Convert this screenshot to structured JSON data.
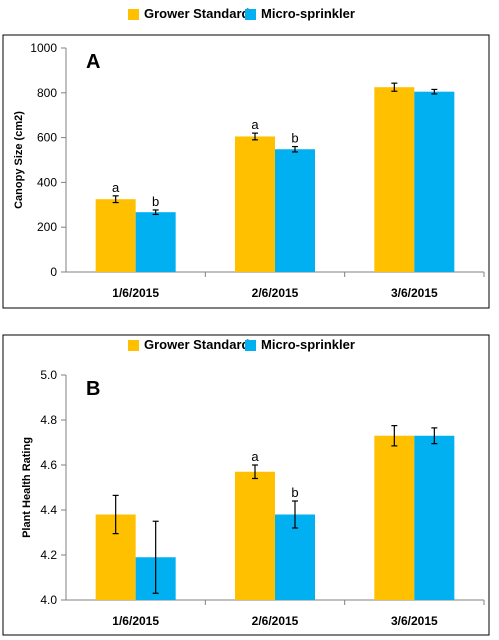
{
  "colors": {
    "grower": "#FFC000",
    "micro": "#00B0F0",
    "axis": "#808080",
    "frame": "#000000"
  },
  "chart_data": [
    {
      "type": "bar",
      "panel_label": "A",
      "title": "",
      "xlabel": "",
      "ylabel": "Canopy Size (cm2)",
      "categories": [
        "1/6/2015",
        "2/6/2015",
        "3/6/2015"
      ],
      "ylim": [
        0,
        1000
      ],
      "yticks": [
        0,
        200,
        400,
        600,
        800,
        1000
      ],
      "ytick_labels": [
        "0",
        "200",
        "400",
        "600",
        "800",
        "1000"
      ],
      "legend_position": "top",
      "series": [
        {
          "name": "Grower Standard",
          "color": "#FFC000",
          "values": [
            325,
            605,
            825
          ],
          "errors": [
            15,
            15,
            18
          ],
          "sig": [
            "a",
            "a",
            ""
          ]
        },
        {
          "name": "Micro-sprinkler",
          "color": "#00B0F0",
          "values": [
            267,
            548,
            805
          ],
          "errors": [
            10,
            12,
            10
          ],
          "sig": [
            "b",
            "b",
            ""
          ]
        }
      ]
    },
    {
      "type": "bar",
      "panel_label": "B",
      "title": "",
      "xlabel": "",
      "ylabel": "Plant Health Rating",
      "categories": [
        "1/6/2015",
        "2/6/2015",
        "3/6/2015"
      ],
      "ylim": [
        4.0,
        5.0
      ],
      "yticks": [
        4.0,
        4.2,
        4.4,
        4.6,
        4.8,
        5.0
      ],
      "ytick_labels": [
        "4.0",
        "4.2",
        "4.4",
        "4.6",
        "4.8",
        "5.0"
      ],
      "legend_position": "top",
      "series": [
        {
          "name": "Grower Standard",
          "color": "#FFC000",
          "values": [
            4.38,
            4.57,
            4.73
          ],
          "errors": [
            0.085,
            0.03,
            0.045
          ],
          "sig": [
            "",
            "a",
            ""
          ]
        },
        {
          "name": "Micro-sprinkler",
          "color": "#00B0F0",
          "values": [
            4.19,
            4.38,
            4.73
          ],
          "errors": [
            0.16,
            0.06,
            0.035
          ],
          "sig": [
            "",
            "b",
            ""
          ]
        }
      ]
    }
  ]
}
